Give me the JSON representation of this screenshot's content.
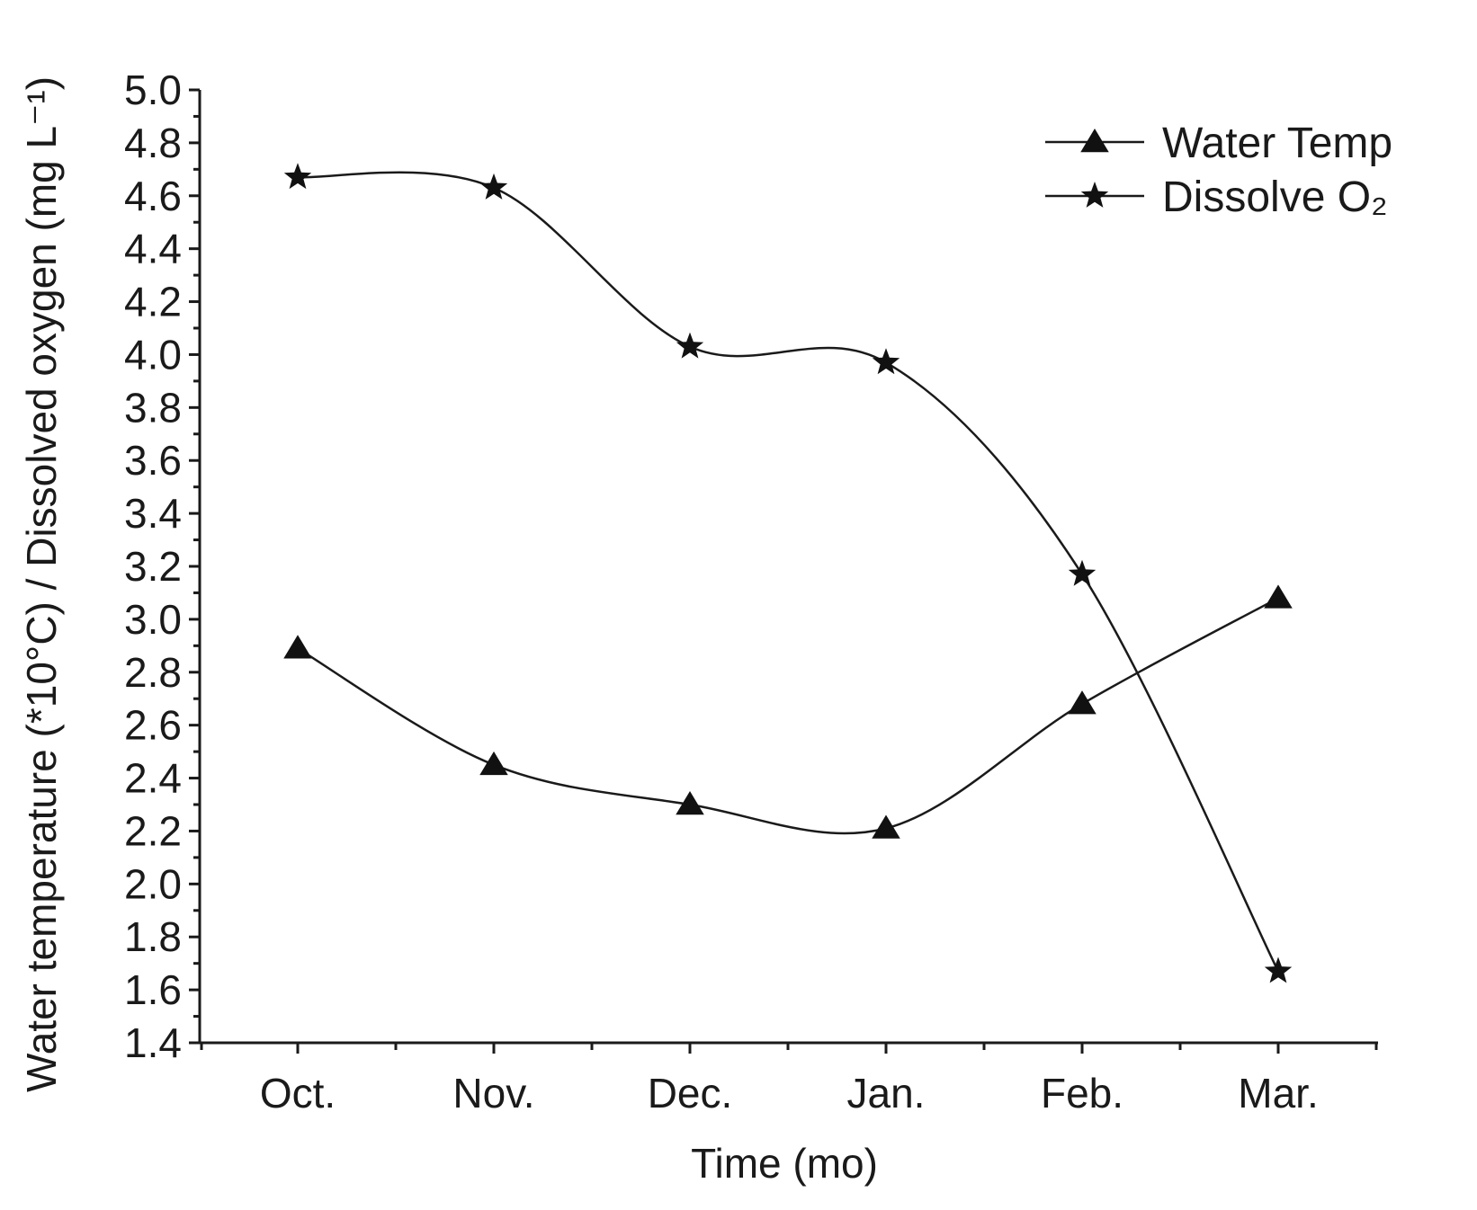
{
  "chart_data": {
    "type": "line",
    "title": "",
    "xlabel": "Time (mo)",
    "ylabel": "Water temperature (*10°C) / Dissolved oxygen (mg L⁻¹)",
    "categories": [
      "Oct.",
      "Nov.",
      "Dec.",
      "Jan.",
      "Feb.",
      "Mar."
    ],
    "ylim": [
      1.4,
      5.0
    ],
    "yticks": [
      "1.4",
      "1.6",
      "1.8",
      "2.0",
      "2.2",
      "2.4",
      "2.6",
      "2.8",
      "3.0",
      "3.2",
      "3.4",
      "3.6",
      "3.8",
      "4.0",
      "4.2",
      "4.4",
      "4.6",
      "4.8",
      "5.0"
    ],
    "grid": false,
    "legend_position": "top-right",
    "series": [
      {
        "name": "Water Temp",
        "marker": "triangle",
        "values": [
          2.89,
          2.45,
          2.3,
          2.21,
          2.68,
          3.08
        ]
      },
      {
        "name": "Dissolve O₂",
        "marker": "star",
        "values": [
          4.67,
          4.63,
          4.03,
          3.97,
          3.17,
          1.67
        ]
      }
    ]
  }
}
